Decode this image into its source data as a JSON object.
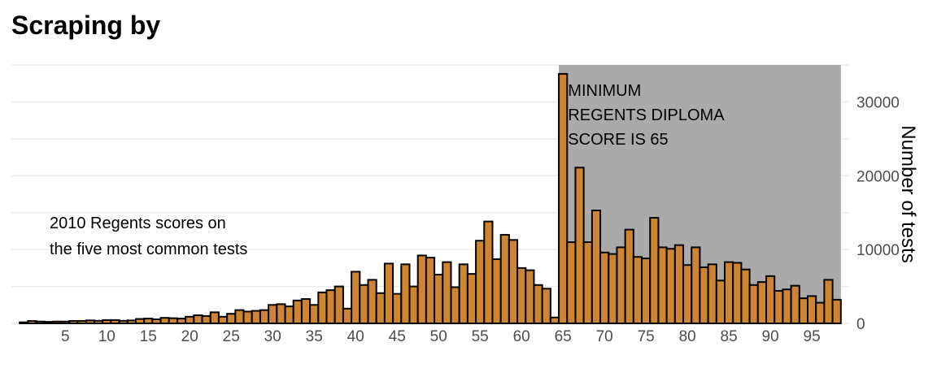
{
  "chart_data": {
    "type": "bar",
    "title": "Scraping by",
    "xlabel": "",
    "ylabel": "Number of tests",
    "x": [
      0,
      1,
      2,
      3,
      4,
      5,
      6,
      7,
      8,
      9,
      10,
      11,
      12,
      13,
      14,
      15,
      16,
      17,
      18,
      19,
      20,
      21,
      22,
      23,
      24,
      25,
      26,
      27,
      28,
      29,
      30,
      31,
      32,
      33,
      34,
      35,
      36,
      37,
      38,
      39,
      40,
      41,
      42,
      43,
      44,
      45,
      46,
      47,
      48,
      49,
      50,
      51,
      52,
      53,
      54,
      55,
      56,
      57,
      58,
      59,
      60,
      61,
      62,
      63,
      64,
      65,
      66,
      67,
      68,
      69,
      70,
      71,
      72,
      73,
      74,
      75,
      76,
      77,
      78,
      79,
      80,
      81,
      82,
      83,
      84,
      85,
      86,
      87,
      88,
      89,
      90,
      91,
      92,
      93,
      94,
      95,
      96,
      97,
      98
    ],
    "values": [
      150,
      320,
      250,
      200,
      250,
      250,
      330,
      330,
      400,
      350,
      450,
      450,
      350,
      400,
      600,
      650,
      550,
      750,
      700,
      650,
      900,
      1100,
      1000,
      1500,
      900,
      1300,
      1800,
      1600,
      1700,
      1800,
      2500,
      2600,
      2300,
      3100,
      3300,
      2500,
      4200,
      4500,
      5000,
      2000,
      7000,
      5200,
      5900,
      4100,
      8100,
      4000,
      8000,
      5000,
      9200,
      8900,
      6600,
      8300,
      4900,
      8000,
      6700,
      11200,
      13800,
      8700,
      12000,
      11300,
      7500,
      7200,
      5200,
      4700,
      800,
      33800,
      11000,
      21100,
      11000,
      15300,
      9600,
      9400,
      10300,
      12700,
      9000,
      8800,
      14300,
      10300,
      10100,
      10600,
      7900,
      10300,
      7600,
      8000,
      5800,
      8300,
      8200,
      7300,
      5200,
      5600,
      6400,
      4400,
      4600,
      5100,
      3400,
      3700,
      2800,
      5900,
      3200
    ],
    "xticks": [
      5,
      10,
      15,
      20,
      25,
      30,
      35,
      40,
      45,
      50,
      55,
      60,
      65,
      70,
      75,
      80,
      85,
      90,
      95
    ],
    "yticks": [
      0,
      10000,
      20000,
      30000
    ],
    "xlim": [
      -1.5,
      99.5
    ],
    "ylim": [
      0,
      35000
    ],
    "y_axis_position": "right",
    "grid": true,
    "bar_color": "#cd8533",
    "shade_color": "#aaaaaa",
    "shade_range": [
      64.5,
      98.5
    ],
    "annotations": {
      "shade_label": [
        "MINIMUM",
        "REGENTS DIPLOMA",
        "SCORE IS 65"
      ],
      "note": [
        "2010 Regents scores on",
        "the five most common tests"
      ]
    }
  }
}
